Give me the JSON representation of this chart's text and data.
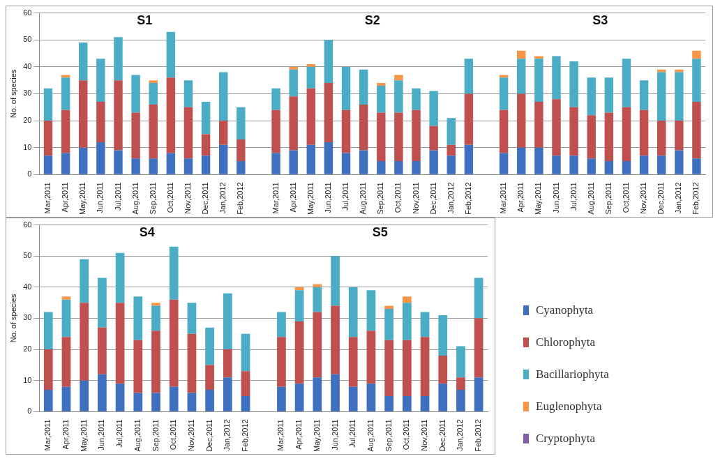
{
  "chart_data": [
    {
      "type": "bar",
      "stacked": true,
      "ylabel": "No. of species",
      "annotations": [
        "S1",
        "S2",
        "S3"
      ],
      "grid": "y",
      "legend": false,
      "categories": [
        "Mar,2011",
        "Apr,2011",
        "May,2011",
        "Jun,2011",
        "Jul,2011",
        "Aug,2011",
        "Sep,2011",
        "Oct,2011",
        "Nov,2011",
        "Dec,2011",
        "Jan,2012",
        "Feb,2012",
        null,
        "Mar,2011",
        "Apr,2011",
        "May,2011",
        "Jun,2011",
        "Jul,2011",
        "Aug,2011",
        "Sep,2011",
        "Oct,2011",
        "Nov,2011",
        "Dec,2011",
        "Jan,2012",
        "Feb,2012",
        null,
        "Mar,2011",
        "Apr,2011",
        "May,2011",
        "Jun,2011",
        "Jul,2011",
        "Aug,2011",
        "Sep,2011",
        "Oct,2011",
        "Nov,2011",
        "Dec,2011",
        "Jan,2012",
        "Feb,2012"
      ],
      "ylim": [
        0,
        60
      ],
      "yticks": [
        0,
        10,
        20,
        30,
        40,
        50,
        60
      ],
      "series": [
        {
          "color": "#3f6fbf",
          "values": [
            7,
            8,
            10,
            12,
            9,
            6,
            6,
            8,
            6,
            7,
            11,
            5,
            null,
            8,
            9,
            11,
            12,
            8,
            9,
            5,
            5,
            5,
            9,
            7,
            11,
            null,
            8,
            10,
            10,
            7,
            7,
            6,
            5,
            5,
            7,
            7,
            9,
            6
          ]
        },
        {
          "color": "#c0504d",
          "values": [
            13,
            16,
            25,
            15,
            26,
            17,
            20,
            28,
            19,
            8,
            9,
            8,
            null,
            16,
            20,
            21,
            22,
            16,
            17,
            18,
            18,
            19,
            9,
            4,
            19,
            null,
            16,
            20,
            17,
            21,
            18,
            16,
            18,
            20,
            17,
            13,
            11,
            21
          ]
        },
        {
          "color": "#4bacc6",
          "values": [
            12,
            12,
            14,
            16,
            16,
            14,
            8,
            17,
            10,
            12,
            18,
            12,
            null,
            8,
            10,
            8,
            16,
            16,
            13,
            10,
            12,
            8,
            13,
            10,
            13,
            null,
            12,
            13,
            16,
            16,
            17,
            14,
            13,
            18,
            11,
            18,
            18,
            16
          ]
        },
        {
          "color": "#f79646",
          "values": [
            0,
            1,
            0,
            0,
            0,
            0,
            1,
            0,
            0,
            0,
            0,
            0,
            null,
            0,
            1,
            1,
            0,
            0,
            0,
            1,
            2,
            0,
            0,
            0,
            0,
            null,
            1,
            3,
            1,
            0,
            0,
            0,
            0,
            0,
            0,
            1,
            1,
            3
          ]
        },
        {
          "color": "#7e5fa8",
          "values": [
            0,
            0,
            0,
            0,
            0,
            0,
            0,
            0,
            0,
            0,
            0,
            0,
            null,
            0,
            0,
            0,
            0,
            0,
            0,
            0,
            0,
            0,
            0,
            0,
            0,
            null,
            0,
            0,
            0,
            0,
            0,
            0,
            0,
            0,
            0,
            0,
            0,
            0
          ]
        }
      ]
    },
    {
      "type": "bar",
      "stacked": true,
      "ylabel": "No. of species",
      "annotations": [
        "S4",
        "S5"
      ],
      "grid": "y",
      "legend": "right",
      "categories": [
        "Mar,2011",
        "Apr,2011",
        "May,2011",
        "Jun,2011",
        "Jul,2011",
        "Aug,2011",
        "Sep,2011",
        "Oct,2011",
        "Nov,2011",
        "Dec,2011",
        "Jan,2012",
        "Feb,2012",
        null,
        "Mar,2011",
        "Apr,2011",
        "May,2011",
        "Jun,2011",
        "Jul,2011",
        "Aug,2011",
        "Sep,2011",
        "Oct,2011",
        "Nov,2011",
        "Dec,2011",
        "Jan,2012",
        "Feb,2012"
      ],
      "ylim": [
        0,
        60
      ],
      "yticks": [
        0,
        10,
        20,
        30,
        40,
        50,
        60
      ],
      "series": [
        {
          "name": "Cyanophyta",
          "color": "#3f6fbf",
          "values": [
            7,
            8,
            10,
            12,
            9,
            6,
            6,
            8,
            6,
            7,
            11,
            5,
            null,
            8,
            9,
            11,
            12,
            8,
            9,
            5,
            5,
            5,
            9,
            7,
            11
          ]
        },
        {
          "name": "Chlorophyta",
          "color": "#c0504d",
          "values": [
            13,
            16,
            25,
            15,
            26,
            17,
            20,
            28,
            19,
            8,
            9,
            8,
            null,
            16,
            20,
            21,
            22,
            16,
            17,
            18,
            18,
            19,
            9,
            4,
            19
          ]
        },
        {
          "name": "Bacillariophyta",
          "color": "#4bacc6",
          "values": [
            12,
            12,
            14,
            16,
            16,
            14,
            8,
            17,
            10,
            12,
            18,
            12,
            null,
            8,
            10,
            8,
            16,
            16,
            13,
            10,
            12,
            8,
            13,
            10,
            13
          ]
        },
        {
          "name": "Euglenophyta",
          "color": "#f79646",
          "values": [
            0,
            1,
            0,
            0,
            0,
            0,
            1,
            0,
            0,
            0,
            0,
            0,
            null,
            0,
            1,
            1,
            0,
            0,
            0,
            1,
            2,
            0,
            0,
            0,
            0
          ]
        },
        {
          "name": "Cryptophyta",
          "color": "#7e5fa8",
          "values": [
            0,
            0,
            0,
            0,
            0,
            0,
            0,
            0,
            0,
            0,
            0,
            0,
            null,
            0,
            0,
            0,
            0,
            0,
            0,
            0,
            0,
            0,
            0,
            0,
            0
          ]
        }
      ]
    }
  ]
}
